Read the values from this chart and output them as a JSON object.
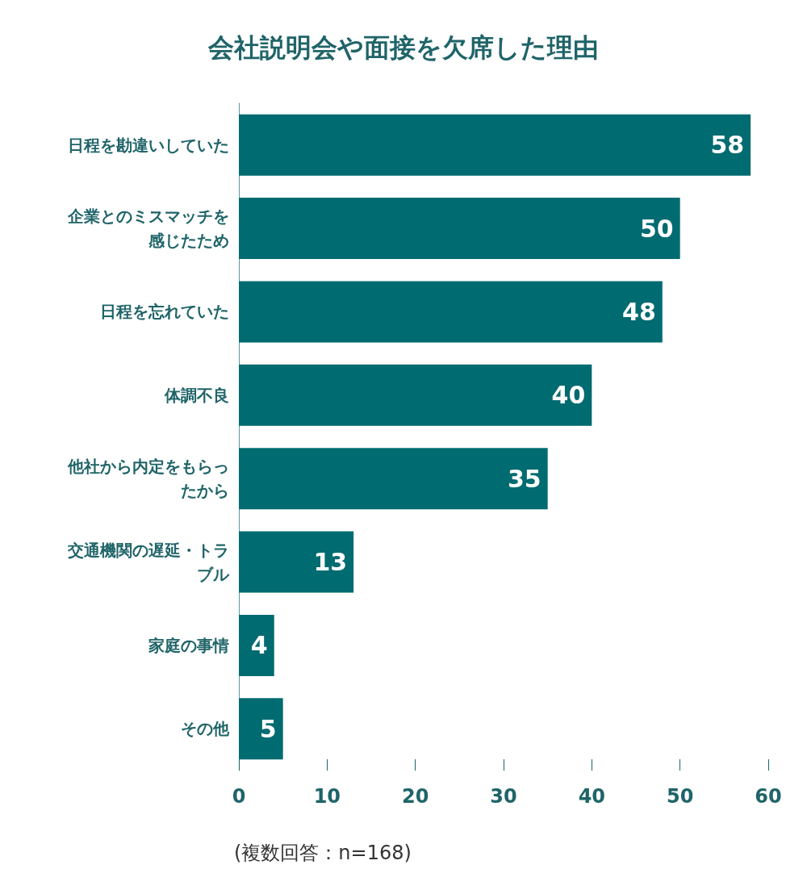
{
  "chart_data": {
    "type": "bar",
    "orientation": "horizontal",
    "title": "会社説明会や面接を欠席した理由",
    "categories": [
      "日程を勘違いしていた",
      "企業とのミスマッチを感じたため",
      "日程を忘れていた",
      "体調不良",
      "他社から内定をもらったから",
      "交通機関の遅延・トラブル",
      "家庭の事情",
      "その他"
    ],
    "values": [
      58,
      50,
      48,
      40,
      35,
      13,
      4,
      5
    ],
    "color": "#006b70",
    "xlim": [
      0,
      60
    ],
    "xticks": [
      0,
      10,
      20,
      30,
      40,
      50,
      60
    ],
    "grid": false,
    "data_labels": true,
    "annotations": [
      "(複数回答：n=168)"
    ]
  }
}
